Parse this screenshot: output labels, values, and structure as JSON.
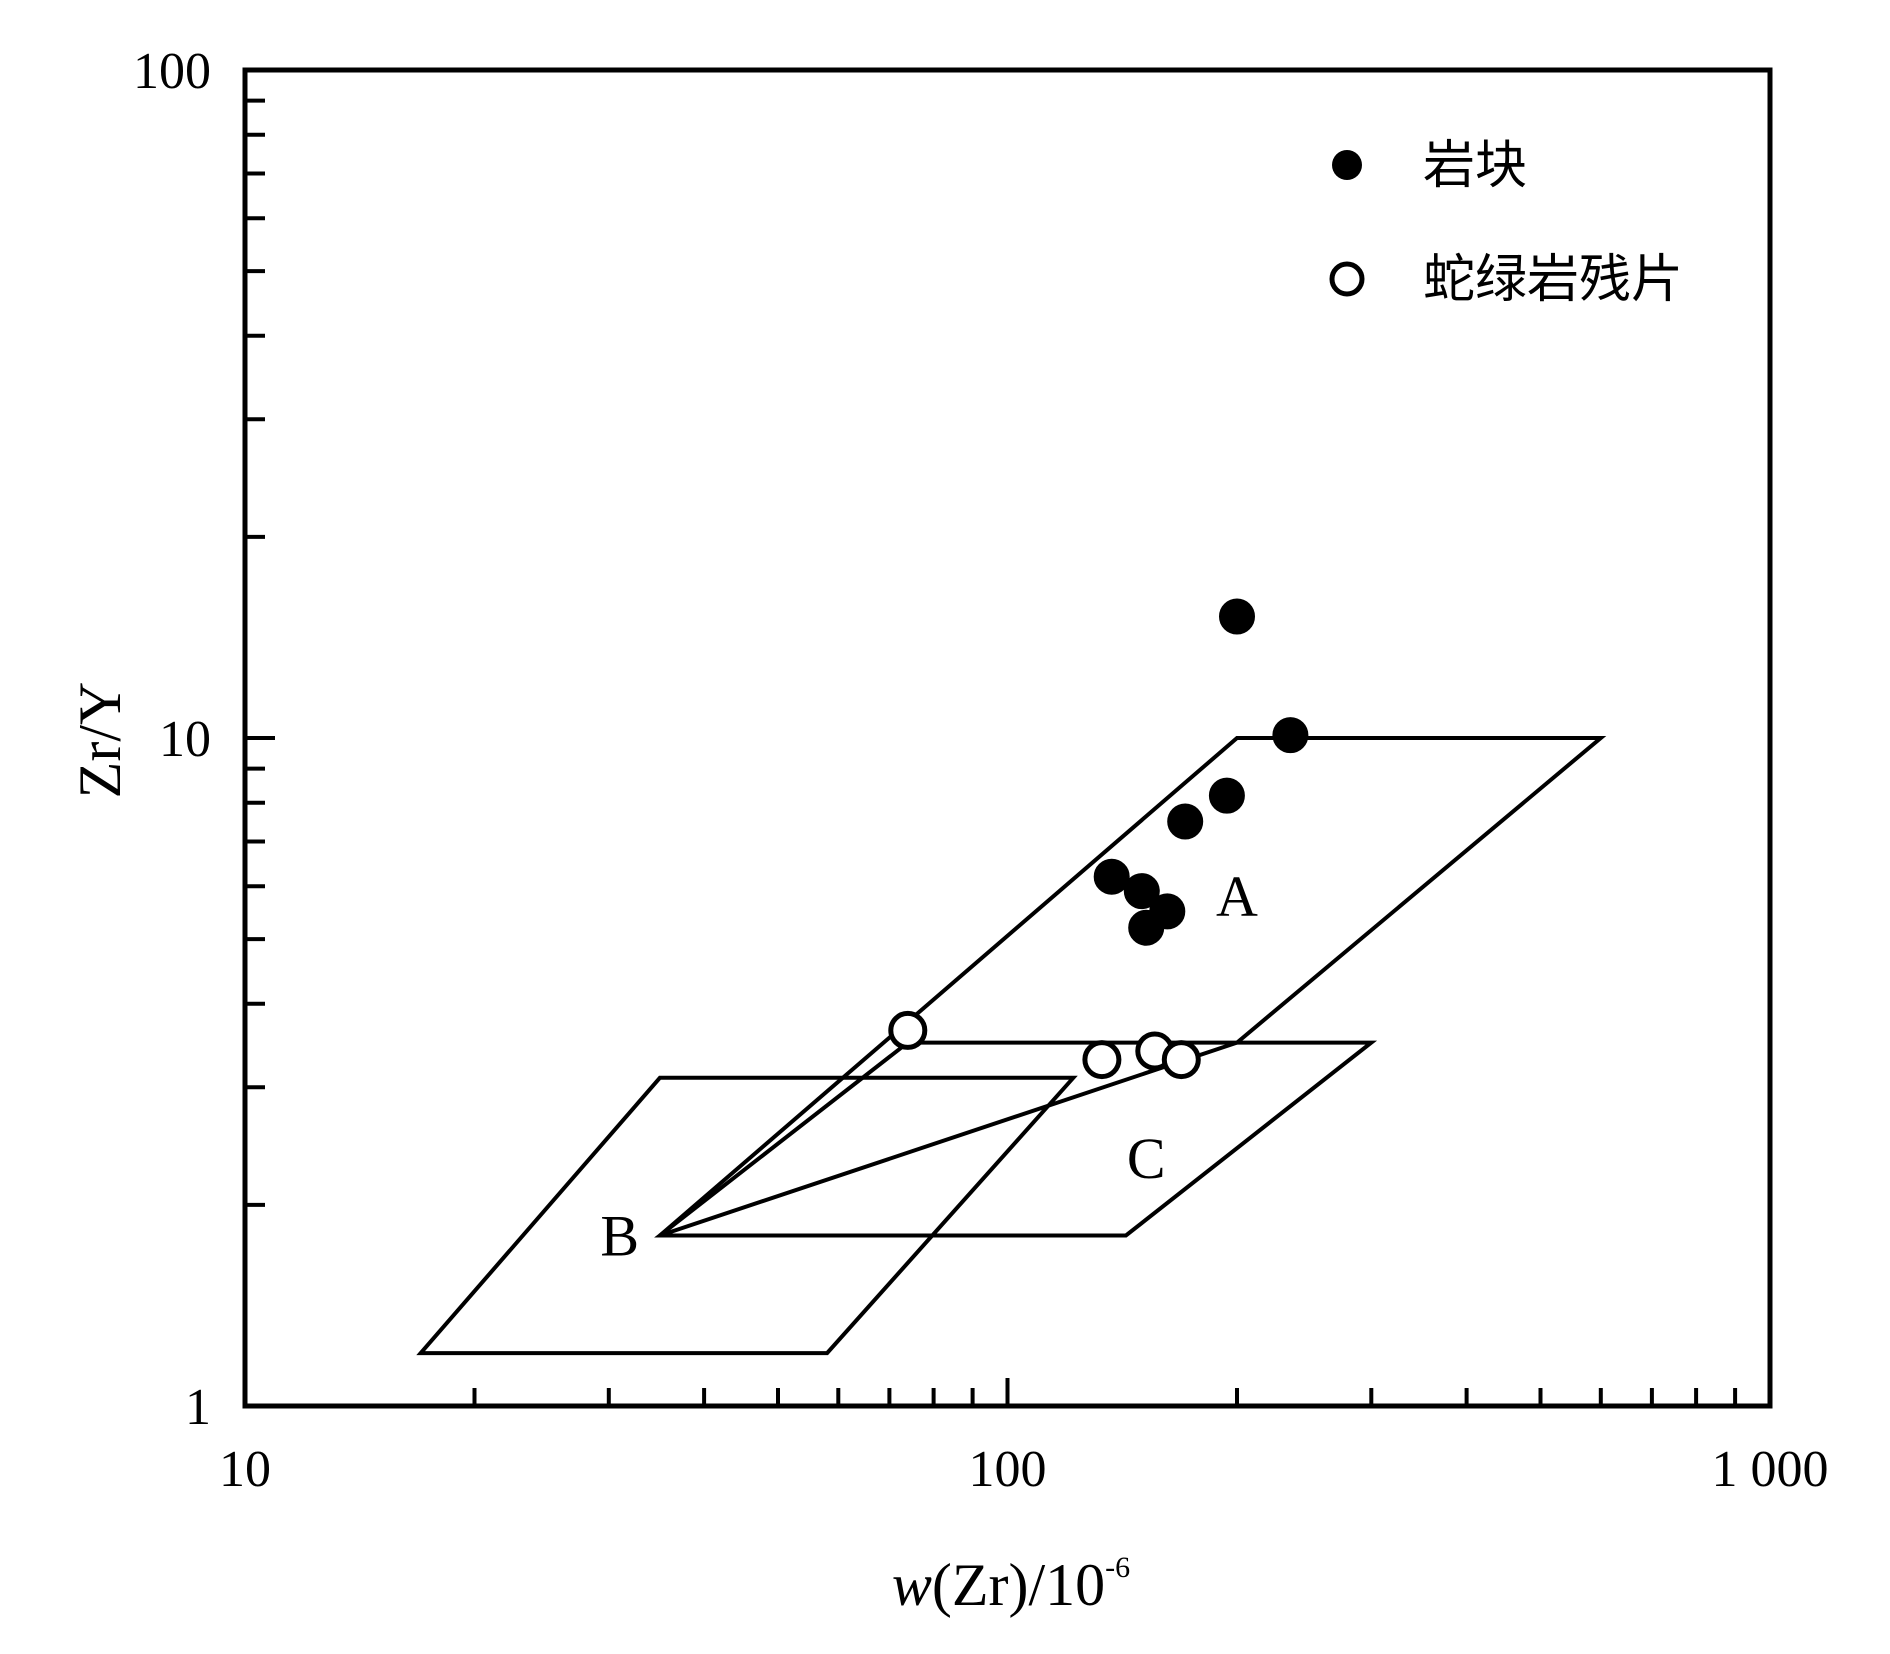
{
  "chart_data": {
    "type": "scatter",
    "xlabel_parts": {
      "italic": "w",
      "rest": "(Zr)/10",
      "sup": "-6"
    },
    "ylabel": "Zr/Y",
    "x_scale": "log",
    "y_scale": "log",
    "xlim": [
      10,
      1000
    ],
    "ylim": [
      1,
      100
    ],
    "x_ticks": [
      {
        "value": 10,
        "label": "10"
      },
      {
        "value": 100,
        "label": "100"
      },
      {
        "value": 1000,
        "label": "1 000"
      }
    ],
    "y_ticks": [
      {
        "value": 1,
        "label": "1"
      },
      {
        "value": 10,
        "label": "10"
      },
      {
        "value": 100,
        "label": "100"
      }
    ],
    "grid": false,
    "legend_position": "top-right",
    "series": [
      {
        "name": "岩块",
        "marker": "filled-circle",
        "points": [
          {
            "x": 200,
            "y": 15.2
          },
          {
            "x": 235,
            "y": 10.1
          },
          {
            "x": 194,
            "y": 8.2
          },
          {
            "x": 171,
            "y": 7.5
          },
          {
            "x": 137,
            "y": 6.2
          },
          {
            "x": 150,
            "y": 5.9
          },
          {
            "x": 162,
            "y": 5.5
          },
          {
            "x": 152,
            "y": 5.2
          }
        ]
      },
      {
        "name": "蛇绿岩残片",
        "marker": "open-circle",
        "points": [
          {
            "x": 74,
            "y": 3.65
          },
          {
            "x": 133,
            "y": 3.3
          },
          {
            "x": 156,
            "y": 3.4
          },
          {
            "x": 169,
            "y": 3.3
          }
        ]
      }
    ],
    "regions": [
      {
        "label": "A",
        "label_at": {
          "x": 200,
          "y": 5.8
        },
        "polygon": [
          {
            "x": 35,
            "y": 1.8
          },
          {
            "x": 200,
            "y": 10
          },
          {
            "x": 600,
            "y": 10
          },
          {
            "x": 200,
            "y": 3.5
          }
        ]
      },
      {
        "label": "B",
        "label_at": {
          "x": 31,
          "y": 1.8
        },
        "polygon": [
          {
            "x": 17,
            "y": 1.2
          },
          {
            "x": 35,
            "y": 3.1
          },
          {
            "x": 122,
            "y": 3.1
          },
          {
            "x": 58,
            "y": 1.2
          }
        ]
      },
      {
        "label": "C",
        "label_at": {
          "x": 152,
          "y": 2.35
        },
        "polygon": [
          {
            "x": 35,
            "y": 1.8
          },
          {
            "x": 143,
            "y": 1.8
          },
          {
            "x": 300,
            "y": 3.5
          },
          {
            "x": 74,
            "y": 3.5
          }
        ]
      }
    ]
  }
}
